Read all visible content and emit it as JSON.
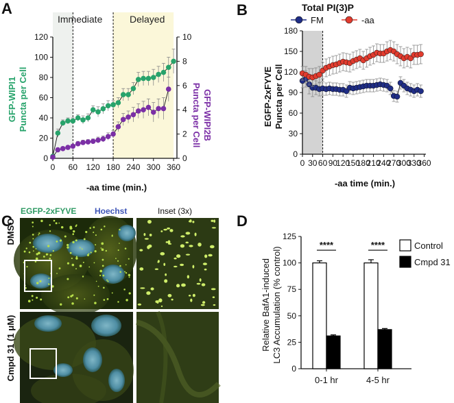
{
  "panel_letters": {
    "A": "A",
    "B": "B",
    "C": "C",
    "D": "D"
  },
  "colors": {
    "green": "#27a36b",
    "purple": "#7b2fa6",
    "red": "#e23b2e",
    "navy": "#1f2d86",
    "cyan_text": "#2e9a63",
    "hoechst": "#3f56b8"
  },
  "panelC": {
    "label_fyve": "EGFP-2xFYVE",
    "label_hoechst": "Hoechst",
    "label_inset": "Inset (3x)",
    "row1": "DMSO",
    "row2": "Cmpd 31 (1 μM)"
  },
  "chart_data": [
    {
      "id": "A",
      "type": "line",
      "region_left": "Immediate",
      "region_right": "Delayed",
      "xlabel": "-aa time (min.)",
      "xticks": [
        0,
        60,
        120,
        180,
        240,
        300,
        360
      ],
      "xlim": [
        0,
        370
      ],
      "left_axis": {
        "label_line1": "GFP-WIPI1",
        "label_line2": "Puncta per Cell",
        "ylim": [
          0,
          120
        ],
        "ticks": [
          0,
          20,
          40,
          60,
          80,
          100,
          120
        ]
      },
      "right_axis": {
        "label_line1": "GFP-WIPI2B",
        "label_line2": "Puncta per Cell",
        "ylim": [
          0,
          10
        ],
        "ticks": [
          0,
          2,
          4,
          6,
          8,
          10
        ]
      },
      "shaded_regions": [
        [
          0,
          60
        ],
        [
          180,
          360
        ]
      ],
      "dashed_lines": [
        60,
        180
      ],
      "series": [
        {
          "name": "GFP-WIPI1",
          "axis": "left",
          "color": "#27a36b",
          "x": [
            0,
            15,
            30,
            45,
            60,
            75,
            90,
            105,
            120,
            135,
            150,
            165,
            180,
            195,
            210,
            225,
            240,
            255,
            270,
            285,
            300,
            315,
            330,
            345,
            360
          ],
          "y": [
            2,
            25,
            35,
            37,
            37,
            40,
            38,
            40,
            48,
            46,
            49,
            52,
            53,
            55,
            63,
            63,
            69,
            78,
            79,
            79,
            80,
            83,
            85,
            90,
            96
          ],
          "err": [
            1,
            4,
            3,
            3,
            3,
            3,
            4,
            4,
            4,
            5,
            5,
            5,
            4,
            5,
            6,
            6,
            6,
            7,
            7,
            7,
            8,
            8,
            9,
            10,
            12
          ]
        },
        {
          "name": "GFP-WIPI2B",
          "axis": "right",
          "color": "#7b2fa6",
          "x": [
            0,
            15,
            30,
            45,
            60,
            75,
            90,
            105,
            120,
            135,
            150,
            165,
            180,
            195,
            210,
            225,
            240,
            255,
            270,
            285,
            300,
            315,
            330,
            345
          ],
          "y": [
            0.1,
            0.7,
            0.8,
            0.9,
            1.0,
            1.2,
            1.3,
            1.35,
            1.4,
            1.5,
            1.6,
            1.8,
            2.0,
            2.6,
            3.2,
            3.4,
            3.6,
            3.9,
            4.0,
            4.2,
            3.8,
            4.1,
            4.1,
            5.7
          ],
          "err": [
            0.05,
            0.15,
            0.15,
            0.15,
            0.15,
            0.2,
            0.2,
            0.2,
            0.2,
            0.25,
            0.25,
            0.3,
            0.3,
            0.4,
            0.5,
            0.5,
            0.6,
            0.6,
            0.7,
            0.7,
            0.8,
            0.8,
            0.9,
            1.0
          ]
        }
      ]
    },
    {
      "id": "B",
      "type": "line",
      "title": "Total PI(3)P",
      "xlabel": "-aa time (min.)",
      "ylabel_line1": "EGFP-2xFYVE",
      "ylabel_line2": "Puncta per Cell",
      "xticks": [
        0,
        30,
        60,
        90,
        120,
        150,
        180,
        210,
        240,
        270,
        300,
        330,
        360
      ],
      "yticks": [
        0,
        30,
        60,
        90,
        120,
        150,
        180
      ],
      "xlim": [
        0,
        365
      ],
      "ylim": [
        0,
        180
      ],
      "shaded_regions": [
        [
          0,
          60
        ]
      ],
      "dashed_lines": [
        60
      ],
      "legend": "top",
      "series": [
        {
          "name": "FM",
          "color": "#1f2d86",
          "x": [
            0,
            10,
            20,
            30,
            40,
            50,
            60,
            70,
            80,
            90,
            100,
            110,
            120,
            130,
            140,
            150,
            160,
            170,
            180,
            190,
            200,
            210,
            220,
            230,
            240,
            250,
            260,
            270,
            280,
            290,
            300,
            310,
            320,
            330,
            340,
            350
          ],
          "y": [
            107,
            110,
            102,
            97,
            97,
            95,
            96,
            95,
            96,
            95,
            95,
            94,
            94,
            92,
            97,
            96,
            97,
            98,
            99,
            100,
            100,
            100,
            101,
            102,
            101,
            100,
            96,
            85,
            84,
            104,
            100,
            96,
            94,
            92,
            94,
            92
          ],
          "err": [
            10,
            12,
            14,
            13,
            10,
            10,
            10,
            9,
            9,
            9,
            9,
            9,
            9,
            9,
            9,
            9,
            9,
            9,
            9,
            9,
            9,
            9,
            9,
            9,
            9,
            9,
            9,
            8,
            8,
            9,
            9,
            9,
            9,
            9,
            9,
            9
          ]
        },
        {
          "name": "-aa",
          "color": "#e23b2e",
          "x": [
            0,
            10,
            20,
            30,
            40,
            50,
            60,
            70,
            80,
            90,
            100,
            110,
            120,
            130,
            140,
            150,
            160,
            170,
            180,
            190,
            200,
            210,
            220,
            230,
            240,
            250,
            260,
            270,
            280,
            290,
            300,
            310,
            320,
            330,
            340,
            350
          ],
          "y": [
            118,
            116,
            113,
            112,
            114,
            116,
            122,
            126,
            128,
            130,
            131,
            133,
            135,
            134,
            133,
            136,
            138,
            140,
            137,
            140,
            143,
            145,
            148,
            147,
            147,
            150,
            152,
            150,
            146,
            143,
            140,
            142,
            140,
            145,
            145,
            146
          ],
          "err": [
            10,
            12,
            12,
            13,
            12,
            12,
            12,
            13,
            13,
            13,
            13,
            13,
            13,
            13,
            13,
            13,
            13,
            13,
            13,
            13,
            13,
            13,
            13,
            13,
            13,
            14,
            14,
            14,
            14,
            14,
            14,
            14,
            14,
            14,
            14,
            14
          ]
        }
      ]
    },
    {
      "id": "D",
      "type": "bar",
      "categories": [
        "0-1 hr",
        "4-5 hr"
      ],
      "series": [
        {
          "name": "Control",
          "color": "#ffffff",
          "values": [
            100,
            100
          ],
          "err": [
            2,
            3
          ]
        },
        {
          "name": "Cmpd 31",
          "color": "#000000",
          "values": [
            31,
            37
          ],
          "err": [
            1,
            1
          ]
        }
      ],
      "ylabel_line1": "Relative BafA1-induced",
      "ylabel_line2": "LC3 Accumulation (% control)",
      "ylim": [
        0,
        125
      ],
      "yticks": [
        0,
        25,
        50,
        75,
        100,
        125
      ],
      "significance": [
        "****",
        "****"
      ]
    }
  ]
}
